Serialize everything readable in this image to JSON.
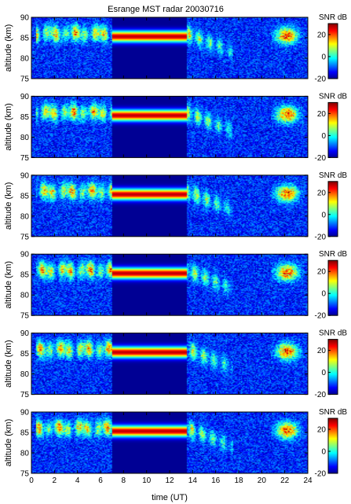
{
  "chart_data": {
    "type": "heatmap",
    "title": "Esrange MST radar 20030716",
    "xlabel": "time (UT)",
    "ylabel": "altitude (km)",
    "colorbar_label": "SNR dB",
    "xlim": [
      0,
      24
    ],
    "ylim": [
      75,
      90
    ],
    "clim": [
      -20,
      30
    ],
    "x_ticks": [
      0,
      2,
      4,
      6,
      8,
      10,
      12,
      14,
      16,
      18,
      20,
      22,
      24
    ],
    "y_ticks": [
      75,
      80,
      85,
      90
    ],
    "colorbar_ticks": [
      -20,
      0,
      20
    ],
    "colormap": "jet",
    "panels": 6,
    "data_gap_ut": [
      7,
      13.5
    ],
    "gap_echo_altitude_km": 85.3,
    "echo_layer": {
      "main_altitude_km": 86,
      "descending_from_ut": 13.5,
      "descending_to_ut": 17.5,
      "descending_end_altitude_km": 81.5,
      "peak_snr_db": 28
    }
  }
}
